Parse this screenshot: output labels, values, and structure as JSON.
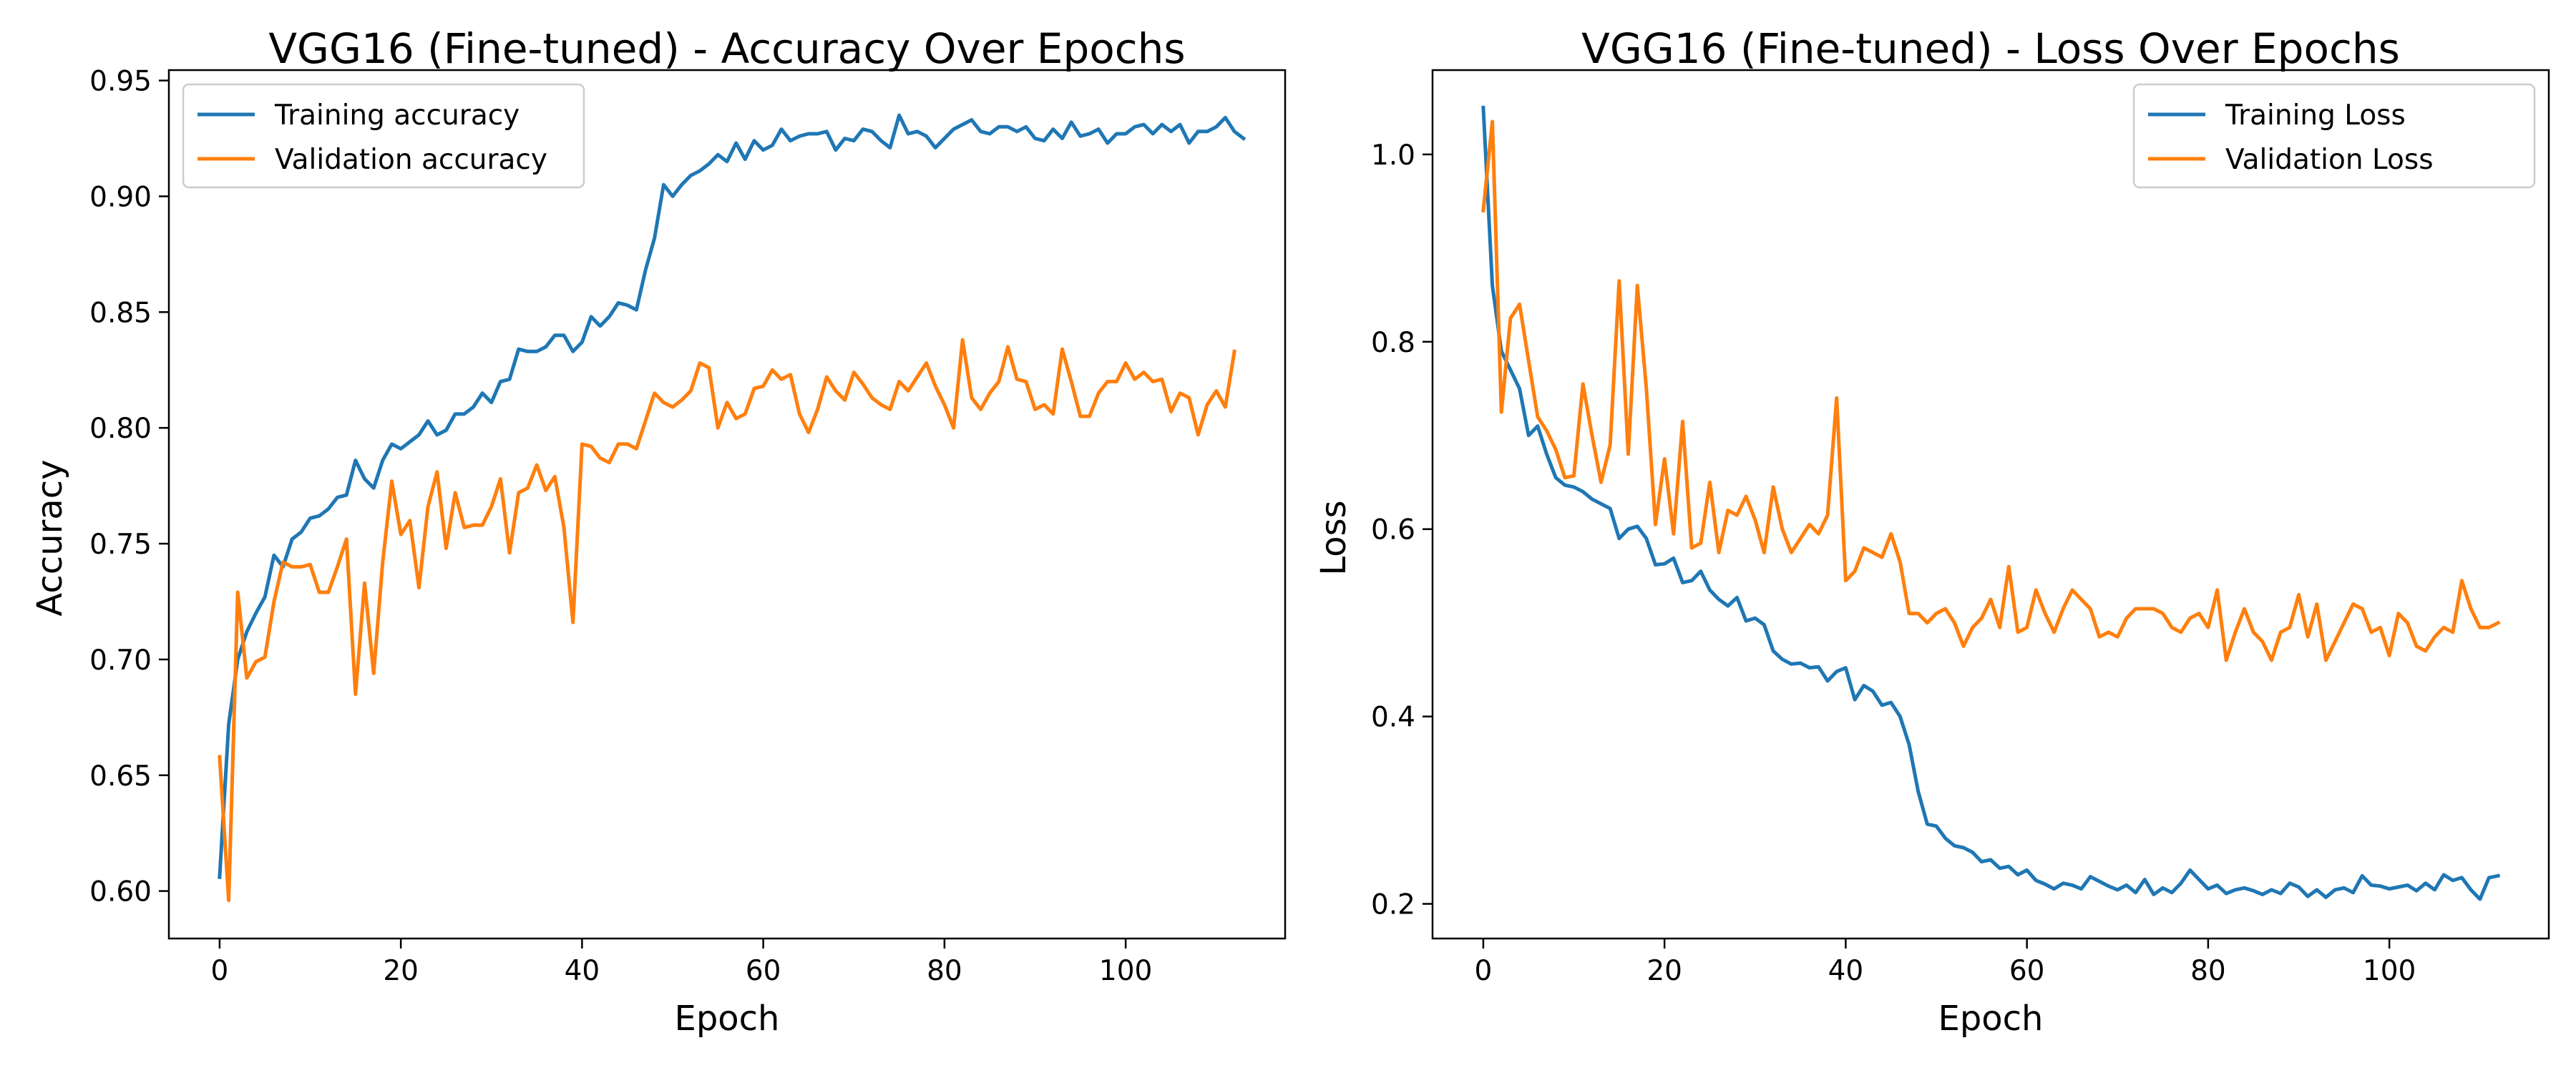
{
  "chart_data": [
    {
      "type": "line",
      "title": "VGG16 (Fine-tuned) - Accuracy Over Epochs",
      "xlabel": "Epoch",
      "ylabel": "Accuracy",
      "xlim": [
        -5.6,
        117.6
      ],
      "ylim": [
        0.5795,
        0.9545
      ],
      "xticks": [
        0,
        20,
        40,
        60,
        80,
        100
      ],
      "yticks": [
        0.6,
        0.65,
        0.7,
        0.75,
        0.8,
        0.85,
        0.9,
        0.95
      ],
      "ytick_labels": [
        "0.60",
        "0.65",
        "0.70",
        "0.75",
        "0.80",
        "0.85",
        "0.90",
        "0.95"
      ],
      "grid": false,
      "legend": "upper left",
      "series": [
        {
          "name": "Training accuracy",
          "color": "#1f77b4",
          "x_start": 0,
          "values": [
            0.606,
            0.672,
            0.7,
            0.712,
            0.72,
            0.727,
            0.745,
            0.74,
            0.752,
            0.755,
            0.761,
            0.762,
            0.765,
            0.77,
            0.771,
            0.786,
            0.778,
            0.774,
            0.786,
            0.793,
            0.791,
            0.794,
            0.797,
            0.803,
            0.797,
            0.799,
            0.806,
            0.806,
            0.809,
            0.815,
            0.811,
            0.82,
            0.821,
            0.834,
            0.833,
            0.833,
            0.835,
            0.84,
            0.84,
            0.833,
            0.837,
            0.848,
            0.844,
            0.848,
            0.854,
            0.853,
            0.851,
            0.868,
            0.882,
            0.905,
            0.9,
            0.905,
            0.909,
            0.911,
            0.914,
            0.918,
            0.915,
            0.923,
            0.916,
            0.924,
            0.92,
            0.922,
            0.929,
            0.924,
            0.926,
            0.927,
            0.927,
            0.928,
            0.92,
            0.925,
            0.924,
            0.929,
            0.928,
            0.924,
            0.921,
            0.935,
            0.927,
            0.928,
            0.926,
            0.921,
            0.925,
            0.929,
            0.931,
            0.933,
            0.928,
            0.927,
            0.93,
            0.93,
            0.928,
            0.93,
            0.925,
            0.924,
            0.929,
            0.925,
            0.932,
            0.926,
            0.927,
            0.929,
            0.923,
            0.927,
            0.927,
            0.93,
            0.931,
            0.927,
            0.931,
            0.928,
            0.931,
            0.923,
            0.928,
            0.928,
            0.93,
            0.934,
            0.928,
            0.925
          ]
        },
        {
          "name": "Validation accuracy",
          "color": "#ff7f0e",
          "x_start": 0,
          "values": [
            0.658,
            0.596,
            0.729,
            0.692,
            0.699,
            0.701,
            0.725,
            0.742,
            0.74,
            0.74,
            0.741,
            0.729,
            0.729,
            0.74,
            0.752,
            0.685,
            0.733,
            0.694,
            0.742,
            0.777,
            0.754,
            0.76,
            0.731,
            0.766,
            0.781,
            0.748,
            0.772,
            0.757,
            0.758,
            0.758,
            0.766,
            0.778,
            0.746,
            0.772,
            0.774,
            0.784,
            0.773,
            0.779,
            0.757,
            0.716,
            0.793,
            0.792,
            0.787,
            0.785,
            0.793,
            0.793,
            0.791,
            0.803,
            0.815,
            0.811,
            0.809,
            0.812,
            0.816,
            0.828,
            0.826,
            0.8,
            0.811,
            0.804,
            0.806,
            0.817,
            0.818,
            0.825,
            0.821,
            0.823,
            0.806,
            0.798,
            0.808,
            0.822,
            0.816,
            0.812,
            0.824,
            0.819,
            0.813,
            0.81,
            0.808,
            0.82,
            0.816,
            0.822,
            0.828,
            0.818,
            0.81,
            0.8,
            0.838,
            0.813,
            0.808,
            0.815,
            0.82,
            0.835,
            0.821,
            0.82,
            0.808,
            0.81,
            0.806,
            0.834,
            0.82,
            0.805,
            0.805,
            0.815,
            0.82,
            0.82,
            0.828,
            0.821,
            0.824,
            0.82,
            0.821,
            0.807,
            0.815,
            0.813,
            0.797,
            0.81,
            0.816,
            0.809,
            0.833
          ]
        }
      ]
    },
    {
      "type": "line",
      "title": "VGG16 (Fine-tuned) - Loss Over Epochs",
      "xlabel": "Epoch",
      "ylabel": "Loss",
      "xlim": [
        -5.6,
        117.6
      ],
      "ylim": [
        0.163,
        1.09
      ],
      "xticks": [
        0,
        20,
        40,
        60,
        80,
        100
      ],
      "yticks": [
        0.2,
        0.4,
        0.6,
        0.8,
        1.0
      ],
      "ytick_labels": [
        "0.2",
        "0.4",
        "0.6",
        "0.8",
        "1.0"
      ],
      "grid": false,
      "legend": "upper right",
      "series": [
        {
          "name": "Training Loss",
          "color": "#1f77b4",
          "x_start": 0,
          "values": [
            1.05,
            0.86,
            0.79,
            0.77,
            0.75,
            0.7,
            0.71,
            0.68,
            0.655,
            0.647,
            0.645,
            0.64,
            0.632,
            0.627,
            0.622,
            0.59,
            0.6,
            0.603,
            0.59,
            0.562,
            0.563,
            0.569,
            0.543,
            0.545,
            0.555,
            0.535,
            0.525,
            0.518,
            0.527,
            0.502,
            0.505,
            0.498,
            0.47,
            0.461,
            0.456,
            0.457,
            0.452,
            0.453,
            0.438,
            0.448,
            0.452,
            0.418,
            0.433,
            0.427,
            0.412,
            0.415,
            0.4,
            0.37,
            0.32,
            0.285,
            0.283,
            0.27,
            0.262,
            0.26,
            0.255,
            0.245,
            0.247,
            0.238,
            0.24,
            0.231,
            0.236,
            0.225,
            0.221,
            0.216,
            0.222,
            0.22,
            0.216,
            0.229,
            0.224,
            0.219,
            0.215,
            0.22,
            0.212,
            0.226,
            0.21,
            0.217,
            0.212,
            0.222,
            0.236,
            0.226,
            0.216,
            0.22,
            0.211,
            0.215,
            0.217,
            0.214,
            0.21,
            0.215,
            0.211,
            0.222,
            0.218,
            0.208,
            0.215,
            0.207,
            0.215,
            0.217,
            0.212,
            0.23,
            0.22,
            0.219,
            0.216,
            0.218,
            0.22,
            0.214,
            0.222,
            0.215,
            0.231,
            0.225,
            0.228,
            0.215,
            0.205,
            0.228,
            0.23
          ]
        },
        {
          "name": "Validation Loss",
          "color": "#ff7f0e",
          "x_start": 0,
          "values": [
            0.94,
            1.035,
            0.725,
            0.825,
            0.84,
            0.78,
            0.72,
            0.705,
            0.685,
            0.655,
            0.657,
            0.755,
            0.7,
            0.65,
            0.69,
            0.865,
            0.68,
            0.86,
            0.75,
            0.605,
            0.675,
            0.595,
            0.715,
            0.58,
            0.585,
            0.65,
            0.575,
            0.62,
            0.615,
            0.635,
            0.61,
            0.575,
            0.645,
            0.6,
            0.575,
            0.59,
            0.605,
            0.595,
            0.615,
            0.74,
            0.545,
            0.555,
            0.58,
            0.575,
            0.57,
            0.595,
            0.565,
            0.51,
            0.51,
            0.5,
            0.51,
            0.515,
            0.5,
            0.475,
            0.495,
            0.505,
            0.525,
            0.495,
            0.56,
            0.49,
            0.495,
            0.535,
            0.51,
            0.49,
            0.515,
            0.535,
            0.525,
            0.515,
            0.485,
            0.49,
            0.485,
            0.505,
            0.515,
            0.515,
            0.515,
            0.51,
            0.495,
            0.49,
            0.505,
            0.51,
            0.495,
            0.535,
            0.46,
            0.49,
            0.515,
            0.49,
            0.48,
            0.46,
            0.49,
            0.495,
            0.53,
            0.485,
            0.52,
            0.46,
            0.48,
            0.5,
            0.52,
            0.515,
            0.49,
            0.495,
            0.465,
            0.51,
            0.5,
            0.475,
            0.47,
            0.485,
            0.495,
            0.49,
            0.545,
            0.515,
            0.495,
            0.495,
            0.5
          ]
        }
      ]
    }
  ]
}
